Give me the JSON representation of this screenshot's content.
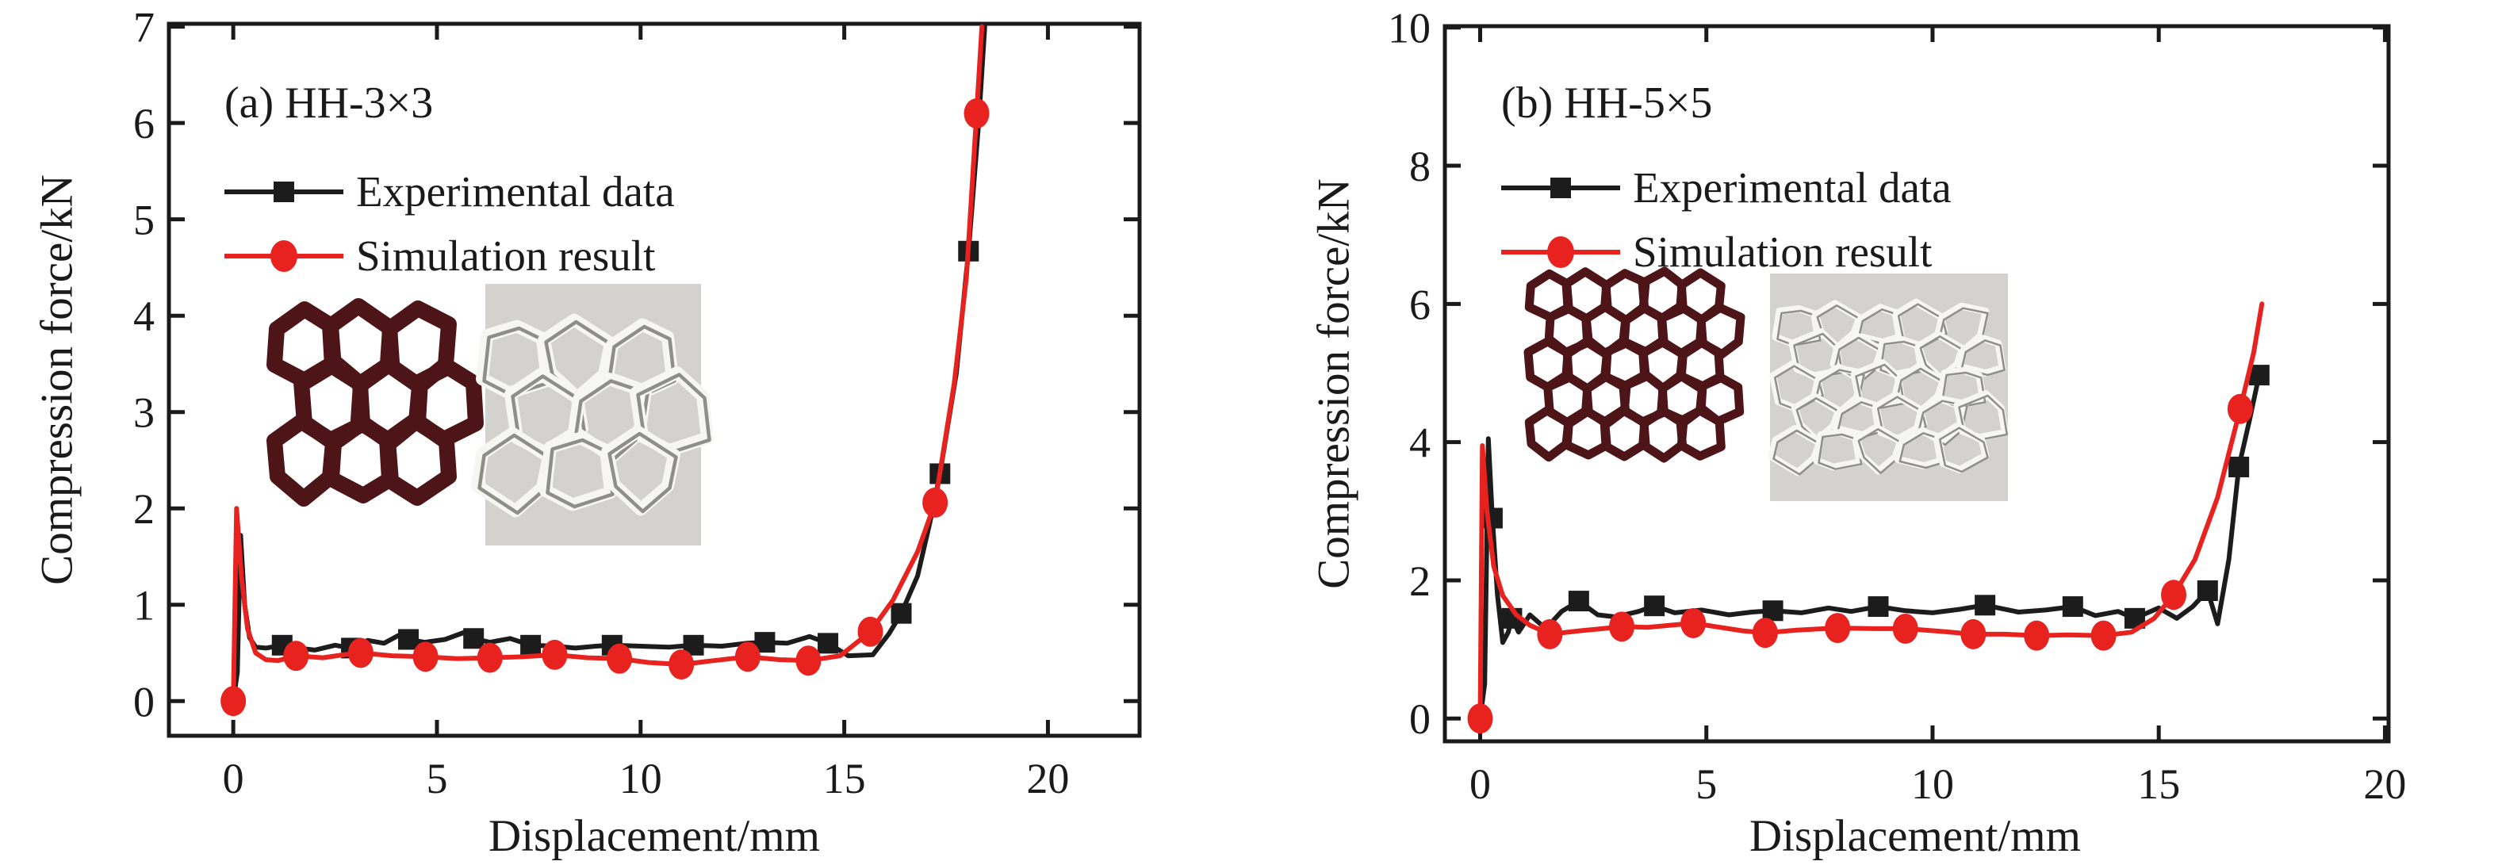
{
  "figure": {
    "background": "#ffffff",
    "text_color": "#1a1a1a",
    "experimental_color": "#1c1c1c",
    "simulation_color": "#e8231f",
    "honeycomb_color": "#4d1517",
    "photo_bg_color": "#d3d2ce"
  },
  "chart_data": [
    {
      "type": "line",
      "title": "(a) HH-3×3",
      "xlabel": "Displacement/mm",
      "ylabel": "Compression force/kN",
      "xlim": [
        -1.58,
        22.25
      ],
      "ylim": [
        -0.36,
        7.03
      ],
      "xticks": [
        0,
        5,
        10,
        15,
        20
      ],
      "yticks": [
        0,
        1,
        2,
        3,
        4,
        5,
        6,
        7
      ],
      "grid": false,
      "legend_position": "upper-left-inside",
      "series": [
        {
          "name": "Experimental data",
          "color": "#1c1c1c",
          "marker": "square",
          "points": [
            [
              0,
              0
            ],
            [
              0.1,
              0.3
            ],
            [
              0.18,
              1.72
            ],
            [
              0.28,
              1.0
            ],
            [
              0.4,
              0.66
            ],
            [
              0.55,
              0.56
            ],
            [
              0.8,
              0.55
            ],
            [
              1.2,
              0.58
            ],
            [
              1.6,
              0.55
            ],
            [
              2.0,
              0.53
            ],
            [
              2.5,
              0.58
            ],
            [
              2.9,
              0.55
            ],
            [
              3.3,
              0.63
            ],
            [
              3.7,
              0.6
            ],
            [
              4.05,
              0.68
            ],
            [
              4.3,
              0.64
            ],
            [
              4.7,
              0.61
            ],
            [
              5.2,
              0.64
            ],
            [
              5.65,
              0.71
            ],
            [
              5.9,
              0.65
            ],
            [
              6.3,
              0.61
            ],
            [
              6.8,
              0.65
            ],
            [
              7.3,
              0.58
            ],
            [
              7.9,
              0.57
            ],
            [
              8.4,
              0.55
            ],
            [
              8.9,
              0.57
            ],
            [
              9.3,
              0.58
            ],
            [
              10.0,
              0.57
            ],
            [
              10.7,
              0.56
            ],
            [
              11.3,
              0.58
            ],
            [
              12.0,
              0.57
            ],
            [
              12.6,
              0.6
            ],
            [
              13.05,
              0.61
            ],
            [
              13.6,
              0.6
            ],
            [
              14.15,
              0.67
            ],
            [
              14.6,
              0.6
            ],
            [
              15.1,
              0.47
            ],
            [
              15.7,
              0.48
            ],
            [
              16.1,
              0.7
            ],
            [
              16.4,
              0.91
            ],
            [
              16.8,
              1.3
            ],
            [
              17.1,
              1.85
            ],
            [
              17.35,
              2.36
            ],
            [
              17.75,
              3.4
            ],
            [
              18.05,
              4.67
            ],
            [
              18.3,
              6.0
            ],
            [
              18.45,
              7.0
            ]
          ],
          "marker_points": [
            [
              1.2,
              0.58
            ],
            [
              2.9,
              0.55
            ],
            [
              4.3,
              0.64
            ],
            [
              5.9,
              0.65
            ],
            [
              7.3,
              0.58
            ],
            [
              9.3,
              0.58
            ],
            [
              11.3,
              0.58
            ],
            [
              13.05,
              0.61
            ],
            [
              14.6,
              0.6
            ],
            [
              16.4,
              0.91
            ],
            [
              17.35,
              2.36
            ],
            [
              18.05,
              4.67
            ]
          ]
        },
        {
          "name": "Simulation result",
          "color": "#e8231f",
          "marker": "circle",
          "points": [
            [
              0,
              0
            ],
            [
              0.08,
              2.0
            ],
            [
              0.2,
              1.3
            ],
            [
              0.35,
              0.75
            ],
            [
              0.55,
              0.5
            ],
            [
              0.8,
              0.43
            ],
            [
              1.1,
              0.42
            ],
            [
              1.54,
              0.47
            ],
            [
              2.2,
              0.45
            ],
            [
              2.7,
              0.48
            ],
            [
              3.13,
              0.5
            ],
            [
              3.9,
              0.47
            ],
            [
              4.72,
              0.46
            ],
            [
              5.5,
              0.44
            ],
            [
              6.3,
              0.45
            ],
            [
              7.1,
              0.46
            ],
            [
              7.89,
              0.48
            ],
            [
              8.7,
              0.45
            ],
            [
              9.48,
              0.44
            ],
            [
              10.2,
              0.4
            ],
            [
              11.0,
              0.38
            ],
            [
              11.8,
              0.42
            ],
            [
              12.63,
              0.46
            ],
            [
              13.4,
              0.43
            ],
            [
              14.12,
              0.42
            ],
            [
              14.9,
              0.47
            ],
            [
              15.64,
              0.72
            ],
            [
              16.2,
              1.05
            ],
            [
              16.8,
              1.55
            ],
            [
              17.23,
              2.06
            ],
            [
              17.7,
              3.3
            ],
            [
              18.0,
              4.4
            ],
            [
              18.25,
              6.1
            ],
            [
              18.38,
              7.0
            ]
          ],
          "marker_points": [
            [
              0,
              0
            ],
            [
              1.54,
              0.47
            ],
            [
              3.13,
              0.5
            ],
            [
              4.72,
              0.46
            ],
            [
              6.3,
              0.45
            ],
            [
              7.89,
              0.48
            ],
            [
              9.48,
              0.44
            ],
            [
              11.0,
              0.38
            ],
            [
              12.63,
              0.46
            ],
            [
              14.12,
              0.42
            ],
            [
              15.64,
              0.72
            ],
            [
              17.23,
              2.06
            ],
            [
              18.25,
              6.1
            ]
          ]
        }
      ],
      "insets": [
        {
          "kind": "schematic",
          "desc": "honeycomb lattice drawing 3×3",
          "cells": "3×3",
          "color": "#4d1517"
        },
        {
          "kind": "photo",
          "desc": "compressed metal honeycomb specimen photo 3×3"
        }
      ]
    },
    {
      "type": "line",
      "title": "(b) HH-5×5",
      "xlabel": "Displacement/mm",
      "ylabel": "Compression force/kN",
      "xlim": [
        -0.78,
        20.08
      ],
      "ylim": [
        -0.33,
        10.02
      ],
      "xticks": [
        0,
        5,
        10,
        15,
        20
      ],
      "yticks": [
        0,
        2,
        4,
        6,
        8,
        10
      ],
      "grid": false,
      "legend_position": "upper-left-inside",
      "series": [
        {
          "name": "Experimental data",
          "color": "#1c1c1c",
          "marker": "square",
          "points": [
            [
              0,
              0
            ],
            [
              0.1,
              0.5
            ],
            [
              0.18,
              4.05
            ],
            [
              0.27,
              2.9
            ],
            [
              0.38,
              1.8
            ],
            [
              0.5,
              1.1
            ],
            [
              0.62,
              1.25
            ],
            [
              0.7,
              1.45
            ],
            [
              0.85,
              1.25
            ],
            [
              1.1,
              1.5
            ],
            [
              1.45,
              1.3
            ],
            [
              1.8,
              1.55
            ],
            [
              2.18,
              1.7
            ],
            [
              2.6,
              1.5
            ],
            [
              3.0,
              1.47
            ],
            [
              3.5,
              1.55
            ],
            [
              3.85,
              1.63
            ],
            [
              4.3,
              1.53
            ],
            [
              4.9,
              1.57
            ],
            [
              5.5,
              1.5
            ],
            [
              6.0,
              1.54
            ],
            [
              6.47,
              1.56
            ],
            [
              7.1,
              1.53
            ],
            [
              7.7,
              1.6
            ],
            [
              8.2,
              1.55
            ],
            [
              8.8,
              1.62
            ],
            [
              9.4,
              1.56
            ],
            [
              10.0,
              1.53
            ],
            [
              10.6,
              1.58
            ],
            [
              11.16,
              1.64
            ],
            [
              11.9,
              1.54
            ],
            [
              12.5,
              1.57
            ],
            [
              13.1,
              1.62
            ],
            [
              13.6,
              1.49
            ],
            [
              14.1,
              1.55
            ],
            [
              14.47,
              1.45
            ],
            [
              15.0,
              1.6
            ],
            [
              15.4,
              1.45
            ],
            [
              15.75,
              1.62
            ],
            [
              16.08,
              1.85
            ],
            [
              16.3,
              1.37
            ],
            [
              16.55,
              2.3
            ],
            [
              16.77,
              3.64
            ],
            [
              17.0,
              4.3
            ],
            [
              17.22,
              4.97
            ]
          ],
          "marker_points": [
            [
              0.27,
              2.9
            ],
            [
              0.7,
              1.45
            ],
            [
              2.18,
              1.7
            ],
            [
              3.85,
              1.63
            ],
            [
              6.47,
              1.56
            ],
            [
              8.8,
              1.62
            ],
            [
              11.16,
              1.64
            ],
            [
              13.1,
              1.62
            ],
            [
              14.47,
              1.45
            ],
            [
              16.08,
              1.85
            ],
            [
              16.77,
              3.64
            ],
            [
              17.22,
              4.97
            ]
          ]
        },
        {
          "name": "Simulation result",
          "color": "#e8231f",
          "marker": "circle",
          "points": [
            [
              0,
              0
            ],
            [
              0.05,
              3.95
            ],
            [
              0.15,
              3.0
            ],
            [
              0.3,
              2.2
            ],
            [
              0.5,
              1.78
            ],
            [
              0.8,
              1.5
            ],
            [
              1.1,
              1.35
            ],
            [
              1.54,
              1.22
            ],
            [
              2.2,
              1.27
            ],
            [
              2.7,
              1.3
            ],
            [
              3.13,
              1.33
            ],
            [
              3.7,
              1.32
            ],
            [
              4.2,
              1.35
            ],
            [
              4.71,
              1.38
            ],
            [
              5.2,
              1.33
            ],
            [
              5.8,
              1.27
            ],
            [
              6.3,
              1.24
            ],
            [
              7.0,
              1.28
            ],
            [
              7.9,
              1.31
            ],
            [
              8.7,
              1.3
            ],
            [
              9.4,
              1.3
            ],
            [
              10.2,
              1.26
            ],
            [
              10.9,
              1.22
            ],
            [
              11.6,
              1.22
            ],
            [
              12.3,
              1.2
            ],
            [
              13.0,
              1.21
            ],
            [
              13.78,
              1.2
            ],
            [
              14.4,
              1.25
            ],
            [
              14.9,
              1.45
            ],
            [
              15.33,
              1.79
            ],
            [
              15.8,
              2.3
            ],
            [
              16.3,
              3.2
            ],
            [
              16.8,
              4.48
            ],
            [
              17.1,
              5.3
            ],
            [
              17.28,
              6.0
            ]
          ],
          "marker_points": [
            [
              0,
              0
            ],
            [
              1.54,
              1.22
            ],
            [
              3.13,
              1.33
            ],
            [
              4.71,
              1.38
            ],
            [
              6.3,
              1.24
            ],
            [
              7.9,
              1.31
            ],
            [
              9.4,
              1.3
            ],
            [
              10.9,
              1.22
            ],
            [
              12.3,
              1.2
            ],
            [
              13.78,
              1.2
            ],
            [
              15.33,
              1.79
            ],
            [
              16.8,
              4.48
            ]
          ]
        }
      ],
      "insets": [
        {
          "kind": "schematic",
          "desc": "honeycomb lattice drawing 5×5",
          "cells": "5×5",
          "color": "#4d1517"
        },
        {
          "kind": "photo",
          "desc": "compressed metal honeycomb specimen photo 5×5"
        }
      ]
    }
  ]
}
